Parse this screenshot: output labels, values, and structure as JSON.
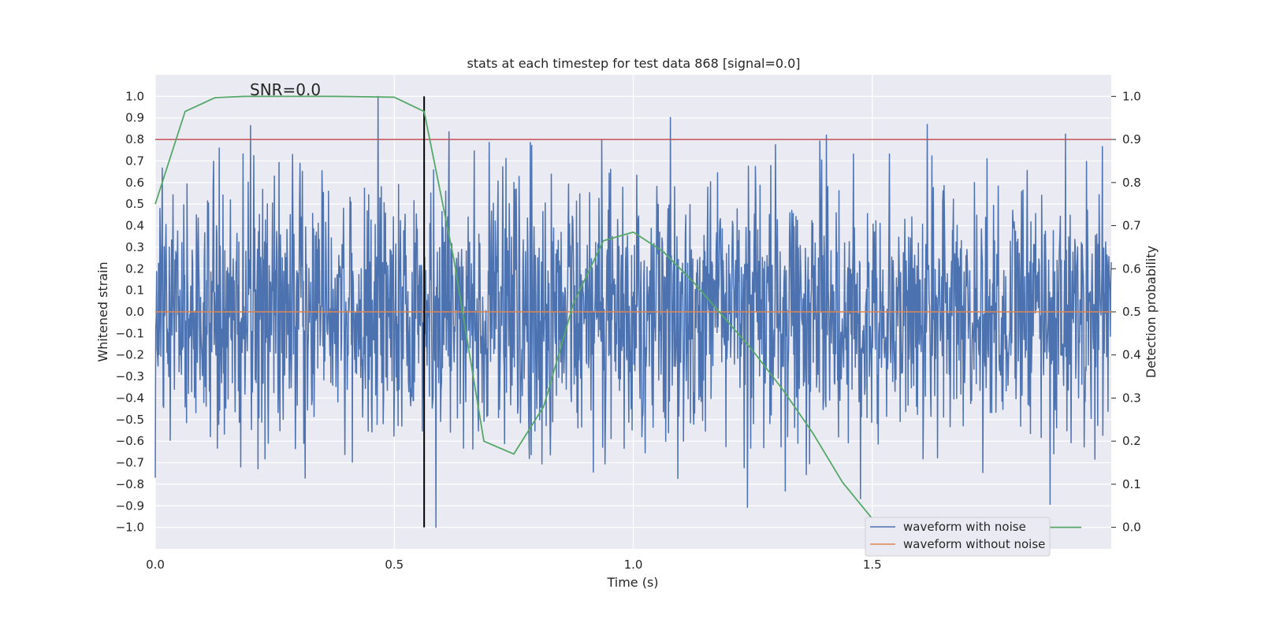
{
  "chart_data": {
    "type": "line",
    "title": "stats at each timestep for test data 868 [signal=0.0]",
    "annotation": "SNR=0.0",
    "xlabel": "Time (s)",
    "ylabel": "Whitened strain",
    "ylabel_right": "Detection probability",
    "xlim": [
      0.0,
      2.0
    ],
    "ylim": [
      -1.1,
      1.1
    ],
    "ylim_right": [
      -0.05,
      1.05
    ],
    "xticks": [
      0.0,
      0.5,
      1.0,
      1.5
    ],
    "xtick_labels": [
      "0.0",
      "0.5",
      "1.0",
      "1.5"
    ],
    "yticks": [
      -1.0,
      -0.9,
      -0.8,
      -0.7,
      -0.6,
      -0.5,
      -0.4,
      -0.3,
      -0.2,
      -0.1,
      0.0,
      0.1,
      0.2,
      0.3,
      0.4,
      0.5,
      0.6,
      0.7,
      0.8,
      0.9,
      1.0
    ],
    "ytick_labels": [
      "−1.0",
      "−0.9",
      "−0.8",
      "−0.7",
      "−0.6",
      "−0.5",
      "−0.4",
      "−0.3",
      "−0.2",
      "−0.1",
      "0.0",
      "0.1",
      "0.2",
      "0.3",
      "0.4",
      "0.5",
      "0.6",
      "0.7",
      "0.8",
      "0.9",
      "1.0"
    ],
    "yticks_right": [
      0.0,
      0.1,
      0.2,
      0.3,
      0.4,
      0.5,
      0.6,
      0.7,
      0.8,
      0.9,
      1.0
    ],
    "ytick_labels_right": [
      "0.0",
      "0.1",
      "0.2",
      "0.3",
      "0.4",
      "0.5",
      "0.6",
      "0.7",
      "0.8",
      "0.9",
      "1.0"
    ],
    "grid": true,
    "legend_position": "lower-right",
    "series": [
      {
        "name": "waveform with noise",
        "color": "#4c72b0",
        "axis": "left",
        "generated": "noise",
        "n_points": 2048,
        "x_range": [
          0.0,
          2.0
        ],
        "amplitude_range": [
          -1.0,
          1.0
        ]
      },
      {
        "name": "waveform without noise",
        "color": "#dd8452",
        "axis": "left",
        "x": [
          0.0,
          2.0
        ],
        "y": [
          0.0,
          0.0
        ]
      },
      {
        "name": "",
        "color": "#55a868",
        "axis": "right",
        "x": [
          0.0,
          0.0625,
          0.125,
          0.1875,
          0.25,
          0.3125,
          0.375,
          0.4375,
          0.5,
          0.5625,
          0.625,
          0.6875,
          0.75,
          0.8125,
          0.875,
          0.9375,
          1.0,
          1.0625,
          1.125,
          1.1875,
          1.25,
          1.3125,
          1.375,
          1.4375,
          1.5,
          1.5625,
          1.625,
          1.6875,
          1.75,
          1.8125,
          1.875,
          1.9375
        ],
        "y": [
          0.75,
          0.965,
          0.997,
          1.0,
          1.0,
          1.0,
          1.0,
          0.999,
          0.998,
          0.965,
          0.62,
          0.2,
          0.17,
          0.28,
          0.52,
          0.665,
          0.685,
          0.64,
          0.57,
          0.49,
          0.41,
          0.32,
          0.22,
          0.105,
          0.02,
          0.0,
          0.0,
          0.0,
          0.0,
          0.0,
          0.0,
          0.0
        ]
      }
    ],
    "threshold_line": {
      "axis": "right",
      "y": 0.9,
      "color": "#c44e52"
    },
    "vertical_marker": {
      "x": 0.5625,
      "y_range": [
        -1.0,
        1.0
      ],
      "color": "#000000"
    }
  }
}
